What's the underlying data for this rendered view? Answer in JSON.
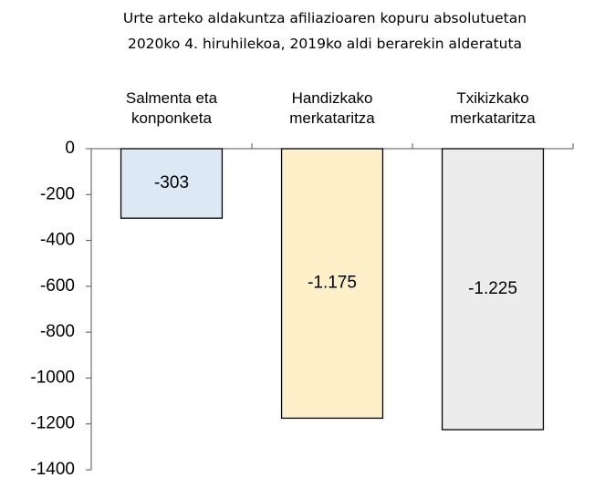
{
  "chart_data": {
    "type": "bar",
    "title": "Urte arteko aldakuntza afiliazioaren kopuru absolutuetan\n2020ko 4. hiruhilekoa, 2019ko aldi berarekin alderatuta",
    "categories": [
      "Salmenta eta\nkonponketa",
      "Handizkako\nmerkataritza",
      "Txikizkako\nmerkataritza"
    ],
    "values": [
      -303,
      -1175,
      -1225
    ],
    "value_labels": [
      "-303",
      "-1.175",
      "-1.225"
    ],
    "colors": [
      "#dce9f5",
      "#fdf0c8",
      "#ececec"
    ],
    "ylim": [
      -1400,
      0
    ],
    "yticks": [
      0,
      -200,
      -400,
      -600,
      -800,
      -1000,
      -1200,
      -1400
    ]
  }
}
